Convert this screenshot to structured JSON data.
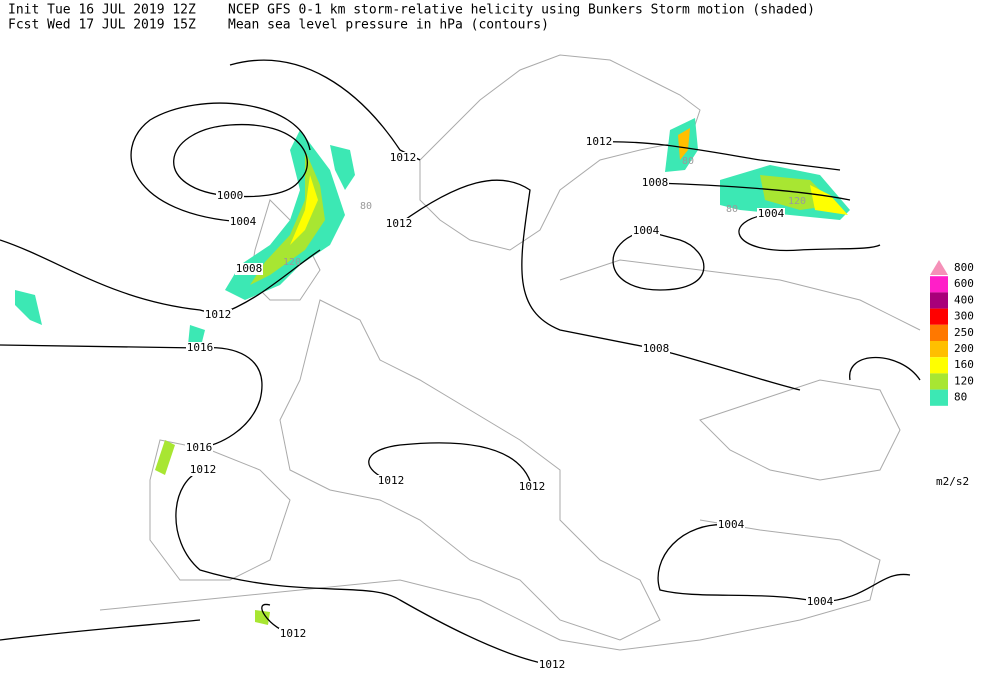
{
  "header": {
    "init": "Init  Tue 16 JUL 2019 12Z",
    "fcst": "Fcst Wed 17 JUL 2019 15Z",
    "title": "NCEP GFS 0-1 km storm-relative helicity using Bunkers Storm motion (shaded)",
    "subtitle": "Mean sea level pressure in hPa (contours)"
  },
  "legend": {
    "levels": [
      800,
      600,
      400,
      300,
      250,
      200,
      160,
      120,
      80
    ],
    "colors": [
      "#f590b8",
      "#ff1fc8",
      "#a8007a",
      "#ff0000",
      "#ff7800",
      "#ffbf00",
      "#ffff00",
      "#a8e632",
      "#3ce8b4"
    ],
    "unit": "m2/s2"
  },
  "contour_labels": [
    1012,
    1000,
    1004,
    1012,
    1008,
    1012,
    1016,
    1012,
    1008,
    1004,
    1004,
    1008,
    1016,
    1012,
    1012,
    1012,
    1004,
    1004,
    1012,
    1012
  ],
  "shaded_labels": [
    80,
    80,
    80,
    120,
    120
  ]
}
